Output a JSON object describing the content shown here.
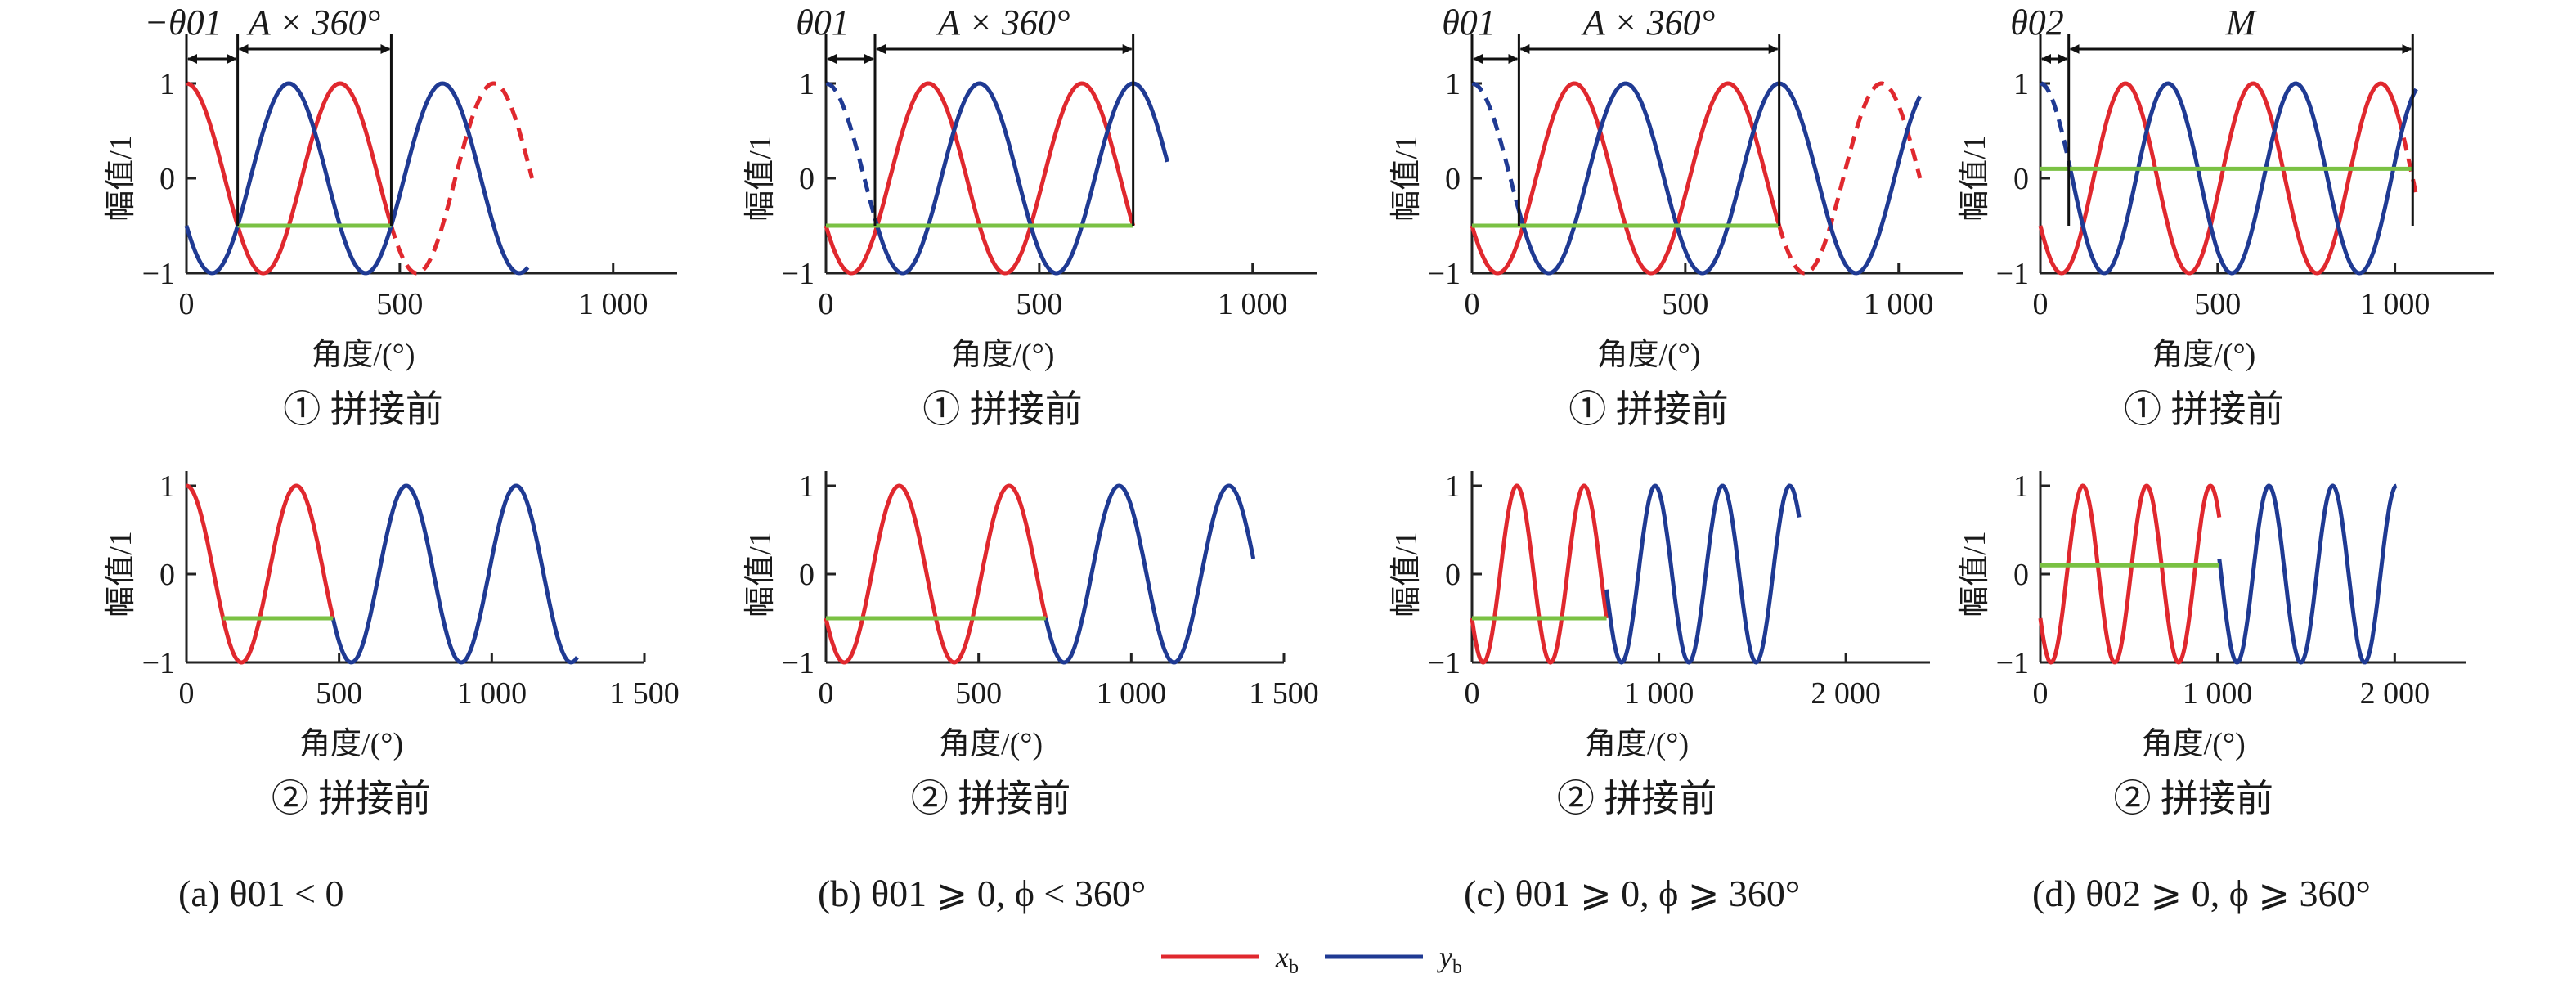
{
  "colors": {
    "x_b": "#e0282e",
    "y_b": "#1f3a93",
    "green": "#7ac143",
    "axis": "#222222"
  },
  "legend": {
    "x_label": "x",
    "x_sub": "b",
    "y_label": "y",
    "y_sub": "b"
  },
  "chart_data": [
    {
      "type": "line",
      "panel": "a",
      "row": 1,
      "ylabel": "幅值/1",
      "xlabel": "角度/(°)",
      "subtitle": "① 拼接前",
      "caption": "(a) θ01 < 0",
      "xlim": [
        0,
        1150
      ],
      "ylim": [
        -1,
        1
      ],
      "xticks": [
        0,
        500,
        1000
      ],
      "xticklabels": [
        "0",
        "500",
        "1 000"
      ],
      "yticks": [
        -1,
        0,
        1
      ],
      "yticklabels": [
        "−1",
        "0",
        "1"
      ],
      "series": [
        {
          "name": "x_b",
          "kind": "cos",
          "period": 360,
          "phase": 0,
          "x": [
            0,
            480
          ],
          "style": "solid"
        },
        {
          "name": "x_b",
          "kind": "cos",
          "period": 360,
          "phase": 0,
          "x": [
            480,
            810
          ],
          "style": "dashed"
        },
        {
          "name": "y_b",
          "kind": "cos",
          "period": 360,
          "phase": 240,
          "x": [
            0,
            800
          ],
          "style": "solid"
        },
        {
          "name": "green",
          "kind": "const",
          "value": -0.5,
          "x": [
            120,
            480
          ],
          "style": "solid"
        }
      ],
      "refs": [
        120,
        480
      ],
      "annotations": [
        {
          "label": "−θ01",
          "from": 0,
          "to": 120
        },
        {
          "label": "A × 360°",
          "from": 120,
          "to": 480
        }
      ]
    },
    {
      "type": "line",
      "panel": "b",
      "row": 1,
      "ylabel": "幅值/1",
      "xlabel": "角度/(°)",
      "subtitle": "① 拼接前",
      "caption": "(b) θ01 ⩾ 0, ϕ < 360°",
      "xlim": [
        0,
        1150
      ],
      "ylim": [
        -1,
        1
      ],
      "xticks": [
        0,
        500,
        1000
      ],
      "xticklabels": [
        "0",
        "500",
        "1 000"
      ],
      "yticks": [
        -1,
        0,
        1
      ],
      "yticklabels": [
        "−1",
        "0",
        "1"
      ],
      "series": [
        {
          "name": "x_b",
          "kind": "cos",
          "period": 360,
          "phase": 240,
          "x": [
            0,
            720
          ],
          "style": "solid"
        },
        {
          "name": "y_b",
          "kind": "cos",
          "period": 360,
          "phase": 0,
          "x": [
            0,
            115
          ],
          "style": "dashed"
        },
        {
          "name": "y_b",
          "kind": "cos",
          "period": 360,
          "phase": 0,
          "x": [
            115,
            800
          ],
          "style": "solid"
        },
        {
          "name": "green",
          "kind": "const",
          "value": -0.5,
          "x": [
            0,
            720
          ],
          "style": "solid"
        }
      ],
      "refs": [
        115,
        720
      ],
      "annotations": [
        {
          "label": "θ01",
          "from": 0,
          "to": 115
        },
        {
          "label": "A × 360°",
          "from": 115,
          "to": 720
        }
      ]
    },
    {
      "type": "line",
      "panel": "c",
      "row": 1,
      "ylabel": "幅值/1",
      "xlabel": "角度/(°)",
      "subtitle": "① 拼接前",
      "caption": "(c) θ01 ⩾ 0, ϕ ⩾ 360°",
      "xlim": [
        0,
        1150
      ],
      "ylim": [
        -1,
        1
      ],
      "xticks": [
        0,
        500,
        1000
      ],
      "xticklabels": [
        "0",
        "500",
        "1 000"
      ],
      "yticks": [
        -1,
        0,
        1
      ],
      "yticklabels": [
        "−1",
        "0",
        "1"
      ],
      "series": [
        {
          "name": "x_b",
          "kind": "cos",
          "period": 360,
          "phase": 240,
          "x": [
            0,
            720
          ],
          "style": "solid"
        },
        {
          "name": "x_b",
          "kind": "cos",
          "period": 360,
          "phase": 240,
          "x": [
            720,
            1050
          ],
          "style": "dashed"
        },
        {
          "name": "y_b",
          "kind": "cos",
          "period": 360,
          "phase": 0,
          "x": [
            0,
            110
          ],
          "style": "dashed"
        },
        {
          "name": "y_b",
          "kind": "cos",
          "period": 360,
          "phase": 0,
          "x": [
            110,
            1050
          ],
          "style": "solid"
        },
        {
          "name": "green",
          "kind": "const",
          "value": -0.5,
          "x": [
            0,
            720
          ],
          "style": "solid"
        }
      ],
      "refs": [
        110,
        720
      ],
      "annotations": [
        {
          "label": "θ01",
          "from": 0,
          "to": 110
        },
        {
          "label": "A × 360°",
          "from": 110,
          "to": 720
        }
      ]
    },
    {
      "type": "line",
      "panel": "d",
      "row": 1,
      "ylabel": "幅值/1",
      "xlabel": "角度/(°)",
      "subtitle": "① 拼接前",
      "caption": "(d) θ02 ⩾ 0, ϕ ⩾ 360°",
      "xlim": [
        0,
        1280
      ],
      "ylim": [
        -1,
        1
      ],
      "xticks": [
        0,
        500,
        1000
      ],
      "xticklabels": [
        "0",
        "500",
        "1 000"
      ],
      "yticks": [
        -1,
        0,
        1
      ],
      "yticklabels": [
        "−1",
        "0",
        "1"
      ],
      "series": [
        {
          "name": "x_b",
          "kind": "cos",
          "period": 360,
          "phase": 240,
          "x": [
            0,
            1010
          ],
          "style": "solid"
        },
        {
          "name": "x_b",
          "kind": "cos",
          "period": 360,
          "phase": 240,
          "x": [
            1010,
            1060
          ],
          "style": "dashed"
        },
        {
          "name": "y_b",
          "kind": "cos",
          "period": 360,
          "phase": 0,
          "x": [
            0,
            80
          ],
          "style": "dashed"
        },
        {
          "name": "y_b",
          "kind": "cos",
          "period": 360,
          "phase": 0,
          "x": [
            80,
            1060
          ],
          "style": "solid"
        },
        {
          "name": "green",
          "kind": "const",
          "value": 0.1,
          "x": [
            0,
            1050
          ],
          "style": "solid"
        }
      ],
      "refs": [
        80,
        1050
      ],
      "annotations": [
        {
          "label": "θ02",
          "from": 0,
          "to": 80
        },
        {
          "label": "M",
          "from": 80,
          "to": 1050
        }
      ]
    },
    {
      "type": "line",
      "panel": "a",
      "row": 2,
      "ylabel": "幅值/1",
      "xlabel": "角度/(°)",
      "subtitle": "② 拼接前",
      "xlim": [
        0,
        1500
      ],
      "ylim": [
        -1,
        1
      ],
      "xticks": [
        0,
        500,
        1000,
        1500
      ],
      "xticklabels": [
        "0",
        "500",
        "1 000",
        "1 500"
      ],
      "yticks": [
        -1,
        0,
        1
      ],
      "yticklabels": [
        "−1",
        "0",
        "1"
      ],
      "series": [
        {
          "name": "x_b",
          "kind": "cos",
          "period": 360,
          "phase": 0,
          "x": [
            0,
            480
          ],
          "style": "solid"
        },
        {
          "name": "y_b",
          "kind": "cos",
          "period": 360,
          "phase": 360,
          "x": [
            480,
            1280
          ],
          "style": "solid"
        },
        {
          "name": "green",
          "kind": "const",
          "value": -0.5,
          "x": [
            120,
            480
          ],
          "style": "solid"
        }
      ]
    },
    {
      "type": "line",
      "panel": "b",
      "row": 2,
      "ylabel": "幅值/1",
      "xlabel": "角度/(°)",
      "subtitle": "② 拼接前",
      "xlim": [
        0,
        1500
      ],
      "ylim": [
        -1,
        1
      ],
      "xticks": [
        0,
        500,
        1000,
        1500
      ],
      "xticklabels": [
        "0",
        "500",
        "1 000",
        "1 500"
      ],
      "yticks": [
        -1,
        0,
        1
      ],
      "yticklabels": [
        "−1",
        "0",
        "1"
      ],
      "series": [
        {
          "name": "x_b",
          "kind": "cos",
          "period": 360,
          "phase": 240,
          "x": [
            0,
            720
          ],
          "style": "solid"
        },
        {
          "name": "y_b",
          "kind": "cos",
          "period": 360,
          "phase": 600,
          "x": [
            720,
            1400
          ],
          "style": "solid"
        },
        {
          "name": "green",
          "kind": "const",
          "value": -0.5,
          "x": [
            0,
            720
          ],
          "style": "solid"
        }
      ]
    },
    {
      "type": "line",
      "panel": "c",
      "row": 2,
      "ylabel": "幅值/1",
      "xlabel": "角度/(°)",
      "subtitle": "② 拼接前",
      "xlim": [
        0,
        2450
      ],
      "ylim": [
        -1,
        1
      ],
      "xticks": [
        0,
        1000,
        2000
      ],
      "xticklabels": [
        "0",
        "1 000",
        "2 000"
      ],
      "yticks": [
        -1,
        0,
        1
      ],
      "yticklabels": [
        "−1",
        "0",
        "1"
      ],
      "series": [
        {
          "name": "x_b",
          "kind": "cos",
          "period": 360,
          "phase": 240,
          "x": [
            0,
            720
          ],
          "style": "solid"
        },
        {
          "name": "y_b",
          "kind": "cos",
          "period": 360,
          "phase": 620,
          "x": [
            720,
            1750
          ],
          "style": "solid"
        },
        {
          "name": "green",
          "kind": "const",
          "value": -0.5,
          "x": [
            0,
            720
          ],
          "style": "solid"
        }
      ]
    },
    {
      "type": "line",
      "panel": "d",
      "row": 2,
      "ylabel": "幅值/1",
      "xlabel": "角度/(°)",
      "subtitle": "② 拼接前",
      "xlim": [
        0,
        2400
      ],
      "ylim": [
        -1,
        1
      ],
      "xticks": [
        0,
        1000,
        2000
      ],
      "xticklabels": [
        "0",
        "1 000",
        "2 000"
      ],
      "yticks": [
        -1,
        0,
        1
      ],
      "yticklabels": [
        "−1",
        "0",
        "1"
      ],
      "series": [
        {
          "name": "x_b",
          "kind": "cos",
          "period": 360,
          "phase": 240,
          "x": [
            0,
            1010
          ],
          "style": "solid"
        },
        {
          "name": "y_b",
          "kind": "cos",
          "period": 360,
          "phase": 930,
          "x": [
            1010,
            2010
          ],
          "style": "solid"
        },
        {
          "name": "green",
          "kind": "const",
          "value": 0.1,
          "x": [
            0,
            1010
          ],
          "style": "solid"
        }
      ]
    }
  ]
}
